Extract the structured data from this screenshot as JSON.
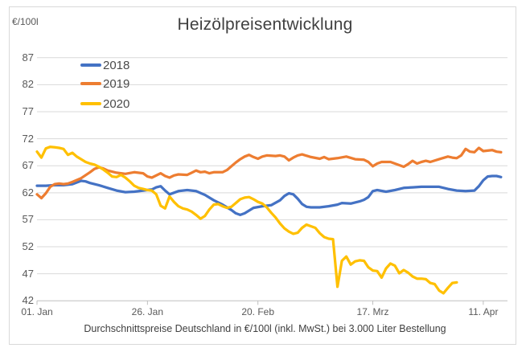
{
  "chart_data": {
    "type": "line",
    "title": "Heizölpreisentwicklung",
    "caption": "Durchschnittspreise Deutschland in €/100l (inkl. MwSt.) bei 3.000 Liter Bestellung",
    "ylabel": "€/100l",
    "ylim": [
      42,
      87
    ],
    "xlim_days": [
      1,
      106
    ],
    "x_unit": "date",
    "grid": "horizontal",
    "legend_position": "top-left-inside",
    "y_ticks": [
      87,
      82,
      77,
      72,
      67,
      62,
      57,
      52,
      47,
      42
    ],
    "x_ticks": [
      {
        "label": "01. Jan",
        "day": 1
      },
      {
        "label": "26. Jan",
        "day": 26
      },
      {
        "label": "20. Feb",
        "day": 51
      },
      {
        "label": "17. Mrz",
        "day": 77
      },
      {
        "label": "11. Apr",
        "day": 102
      }
    ],
    "series": [
      {
        "name": "2018",
        "color": "#4472C4",
        "points": [
          [
            1,
            63.3
          ],
          [
            3,
            63.3
          ],
          [
            5,
            63.4
          ],
          [
            7,
            63.4
          ],
          [
            9,
            63.6
          ],
          [
            11,
            64.2
          ],
          [
            12,
            64.1
          ],
          [
            13,
            63.8
          ],
          [
            15,
            63.4
          ],
          [
            17,
            62.9
          ],
          [
            19,
            62.4
          ],
          [
            21,
            62.1
          ],
          [
            23,
            62.2
          ],
          [
            25,
            62.4
          ],
          [
            27,
            62.6
          ],
          [
            28,
            63.0
          ],
          [
            29,
            63.2
          ],
          [
            30,
            62.4
          ],
          [
            31,
            61.7
          ],
          [
            32,
            62.0
          ],
          [
            33,
            62.3
          ],
          [
            35,
            62.5
          ],
          [
            37,
            62.3
          ],
          [
            39,
            61.6
          ],
          [
            41,
            60.6
          ],
          [
            43,
            59.8
          ],
          [
            45,
            58.8
          ],
          [
            46,
            58.2
          ],
          [
            47,
            57.9
          ],
          [
            48,
            58.2
          ],
          [
            50,
            59.2
          ],
          [
            52,
            59.5
          ],
          [
            54,
            59.7
          ],
          [
            56,
            60.6
          ],
          [
            57,
            61.4
          ],
          [
            58,
            61.9
          ],
          [
            59,
            61.7
          ],
          [
            60,
            60.9
          ],
          [
            61,
            59.9
          ],
          [
            62,
            59.4
          ],
          [
            63,
            59.3
          ],
          [
            65,
            59.3
          ],
          [
            67,
            59.5
          ],
          [
            69,
            59.8
          ],
          [
            70,
            60.1
          ],
          [
            72,
            60.0
          ],
          [
            74,
            60.4
          ],
          [
            75,
            60.7
          ],
          [
            76,
            61.2
          ],
          [
            77,
            62.3
          ],
          [
            78,
            62.5
          ],
          [
            80,
            62.2
          ],
          [
            82,
            62.5
          ],
          [
            84,
            62.9
          ],
          [
            86,
            63.0
          ],
          [
            88,
            63.1
          ],
          [
            90,
            63.1
          ],
          [
            92,
            63.1
          ],
          [
            94,
            62.7
          ],
          [
            96,
            62.4
          ],
          [
            98,
            62.3
          ],
          [
            100,
            62.4
          ],
          [
            101,
            63.2
          ],
          [
            102,
            64.3
          ],
          [
            103,
            65.0
          ],
          [
            104,
            65.1
          ],
          [
            105,
            65.1
          ],
          [
            106,
            64.9
          ]
        ]
      },
      {
        "name": "2019",
        "color": "#ED7D31",
        "points": [
          [
            1,
            61.7
          ],
          [
            2,
            61.0
          ],
          [
            3,
            61.9
          ],
          [
            4,
            63.1
          ],
          [
            5,
            63.6
          ],
          [
            6,
            63.7
          ],
          [
            7,
            63.6
          ],
          [
            8,
            63.7
          ],
          [
            9,
            64.0
          ],
          [
            11,
            64.7
          ],
          [
            13,
            65.8
          ],
          [
            14,
            66.4
          ],
          [
            15,
            66.7
          ],
          [
            16,
            66.5
          ],
          [
            17,
            66.1
          ],
          [
            19,
            65.7
          ],
          [
            21,
            65.5
          ],
          [
            23,
            65.8
          ],
          [
            25,
            65.6
          ],
          [
            26,
            65.0
          ],
          [
            27,
            64.8
          ],
          [
            29,
            65.6
          ],
          [
            30,
            65.1
          ],
          [
            31,
            64.8
          ],
          [
            32,
            65.2
          ],
          [
            33,
            65.4
          ],
          [
            35,
            65.3
          ],
          [
            36,
            65.7
          ],
          [
            37,
            66.1
          ],
          [
            38,
            65.8
          ],
          [
            39,
            65.9
          ],
          [
            40,
            65.6
          ],
          [
            41,
            65.8
          ],
          [
            43,
            65.8
          ],
          [
            44,
            66.2
          ],
          [
            45,
            66.9
          ],
          [
            46,
            67.6
          ],
          [
            47,
            68.2
          ],
          [
            48,
            68.7
          ],
          [
            49,
            69.0
          ],
          [
            50,
            68.6
          ],
          [
            51,
            68.3
          ],
          [
            52,
            68.7
          ],
          [
            53,
            68.9
          ],
          [
            55,
            68.8
          ],
          [
            56,
            68.9
          ],
          [
            57,
            68.7
          ],
          [
            58,
            68.0
          ],
          [
            59,
            68.5
          ],
          [
            60,
            68.9
          ],
          [
            61,
            69.1
          ],
          [
            63,
            68.6
          ],
          [
            65,
            68.3
          ],
          [
            66,
            68.6
          ],
          [
            67,
            68.2
          ],
          [
            69,
            68.4
          ],
          [
            71,
            68.7
          ],
          [
            73,
            68.2
          ],
          [
            75,
            68.1
          ],
          [
            76,
            67.7
          ],
          [
            77,
            66.9
          ],
          [
            78,
            67.4
          ],
          [
            79,
            67.7
          ],
          [
            81,
            67.7
          ],
          [
            83,
            67.1
          ],
          [
            84,
            66.8
          ],
          [
            85,
            67.3
          ],
          [
            86,
            67.9
          ],
          [
            87,
            67.4
          ],
          [
            88,
            67.7
          ],
          [
            89,
            67.9
          ],
          [
            90,
            67.7
          ],
          [
            92,
            68.2
          ],
          [
            94,
            68.7
          ],
          [
            95,
            68.5
          ],
          [
            96,
            68.4
          ],
          [
            97,
            68.9
          ],
          [
            98,
            70.1
          ],
          [
            99,
            69.6
          ],
          [
            100,
            69.5
          ],
          [
            101,
            70.3
          ],
          [
            102,
            69.7
          ],
          [
            104,
            69.9
          ],
          [
            105,
            69.6
          ],
          [
            106,
            69.5
          ]
        ]
      },
      {
        "name": "2020",
        "color": "#FFC000",
        "points": [
          [
            1,
            69.6
          ],
          [
            2,
            68.5
          ],
          [
            3,
            70.2
          ],
          [
            4,
            70.5
          ],
          [
            5,
            70.4
          ],
          [
            6,
            70.3
          ],
          [
            7,
            70.1
          ],
          [
            8,
            69.0
          ],
          [
            9,
            69.4
          ],
          [
            10,
            68.7
          ],
          [
            11,
            68.2
          ],
          [
            12,
            67.7
          ],
          [
            13,
            67.4
          ],
          [
            14,
            67.2
          ],
          [
            15,
            66.8
          ],
          [
            16,
            66.3
          ],
          [
            17,
            65.7
          ],
          [
            18,
            65.0
          ],
          [
            19,
            64.9
          ],
          [
            20,
            65.3
          ],
          [
            21,
            64.8
          ],
          [
            22,
            64.1
          ],
          [
            23,
            63.3
          ],
          [
            24,
            62.9
          ],
          [
            25,
            62.7
          ],
          [
            26,
            62.5
          ],
          [
            27,
            62.4
          ],
          [
            28,
            61.7
          ],
          [
            29,
            59.6
          ],
          [
            30,
            59.1
          ],
          [
            31,
            61.3
          ],
          [
            32,
            60.3
          ],
          [
            33,
            59.5
          ],
          [
            34,
            59.1
          ],
          [
            35,
            58.9
          ],
          [
            36,
            58.5
          ],
          [
            37,
            57.9
          ],
          [
            38,
            57.2
          ],
          [
            39,
            57.7
          ],
          [
            40,
            58.9
          ],
          [
            41,
            59.8
          ],
          [
            42,
            59.9
          ],
          [
            43,
            59.5
          ],
          [
            44,
            59.2
          ],
          [
            45,
            59.4
          ],
          [
            46,
            60.1
          ],
          [
            47,
            60.8
          ],
          [
            48,
            61.1
          ],
          [
            49,
            61.2
          ],
          [
            50,
            60.8
          ],
          [
            51,
            60.3
          ],
          [
            52,
            60.0
          ],
          [
            53,
            59.3
          ],
          [
            54,
            58.3
          ],
          [
            55,
            57.4
          ],
          [
            56,
            56.3
          ],
          [
            57,
            55.4
          ],
          [
            58,
            54.8
          ],
          [
            59,
            54.4
          ],
          [
            60,
            54.6
          ],
          [
            61,
            55.5
          ],
          [
            62,
            56.1
          ],
          [
            63,
            55.8
          ],
          [
            64,
            55.5
          ],
          [
            65,
            54.5
          ],
          [
            66,
            53.8
          ],
          [
            67,
            53.5
          ],
          [
            68,
            53.4
          ],
          [
            69,
            44.6
          ],
          [
            70,
            49.4
          ],
          [
            71,
            50.2
          ],
          [
            72,
            48.7
          ],
          [
            73,
            49.3
          ],
          [
            74,
            49.5
          ],
          [
            75,
            49.4
          ],
          [
            76,
            48.2
          ],
          [
            77,
            47.6
          ],
          [
            78,
            47.5
          ],
          [
            79,
            46.3
          ],
          [
            80,
            48.0
          ],
          [
            81,
            48.9
          ],
          [
            82,
            48.5
          ],
          [
            83,
            47.1
          ],
          [
            84,
            47.7
          ],
          [
            85,
            47.2
          ],
          [
            86,
            46.5
          ],
          [
            87,
            46.1
          ],
          [
            88,
            46.1
          ],
          [
            89,
            46.0
          ],
          [
            90,
            45.3
          ],
          [
            91,
            45.1
          ],
          [
            92,
            43.9
          ],
          [
            93,
            43.4
          ],
          [
            94,
            44.4
          ],
          [
            95,
            45.3
          ],
          [
            96,
            45.4
          ]
        ]
      }
    ]
  }
}
